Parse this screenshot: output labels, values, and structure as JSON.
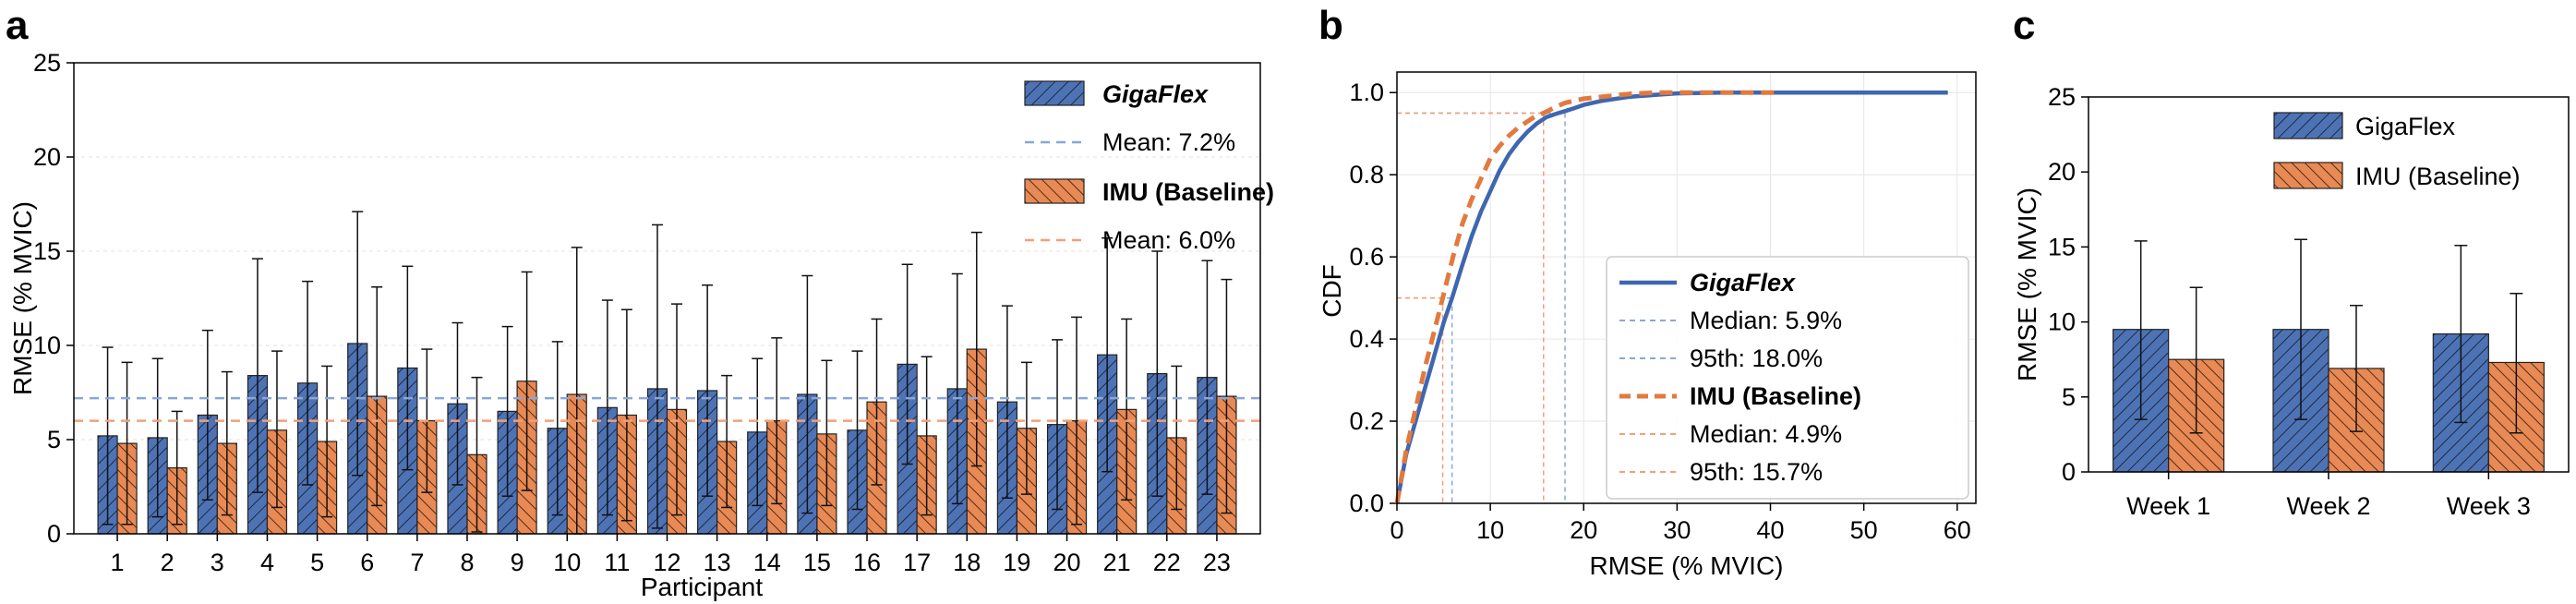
{
  "panels": {
    "a": "a",
    "b": "b",
    "c": "c"
  },
  "colors": {
    "gigaflex": "#4e73b5",
    "imu": "#e78a55",
    "gigaflex_line": "#3f66b0",
    "imu_line": "#e27a3f",
    "gigaflex_mean": "#8ba6d6",
    "imu_mean": "#f0a07a"
  },
  "chart_data": [
    {
      "type": "bar",
      "panel": "a",
      "xlabel": "Participant",
      "ylabel": "RMSE (% MVIC)",
      "ylim": [
        0,
        25
      ],
      "yticks": [
        "0",
        "5",
        "10",
        "15",
        "20",
        "25"
      ],
      "categories": [
        "1",
        "2",
        "3",
        "4",
        "5",
        "6",
        "7",
        "8",
        "9",
        "10",
        "11",
        "12",
        "13",
        "14",
        "15",
        "16",
        "17",
        "18",
        "19",
        "20",
        "21",
        "22",
        "23"
      ],
      "series": [
        {
          "name": "GigaFlex",
          "values": [
            5.2,
            5.1,
            6.3,
            8.4,
            8.0,
            10.1,
            8.8,
            6.9,
            6.5,
            5.6,
            6.7,
            7.7,
            7.6,
            5.4,
            7.4,
            5.5,
            9.0,
            7.7,
            7.0,
            5.8,
            9.5,
            8.5,
            8.3
          ],
          "err_upper": [
            9.9,
            9.3,
            10.8,
            14.6,
            13.4,
            17.1,
            14.2,
            11.2,
            11.0,
            10.2,
            12.4,
            16.4,
            13.2,
            9.3,
            13.7,
            9.7,
            14.3,
            13.8,
            12.1,
            10.3,
            15.7,
            15.0,
            14.5
          ],
          "err_lower": [
            0.5,
            0.9,
            1.8,
            2.2,
            2.6,
            3.1,
            3.4,
            2.6,
            2.0,
            1.0,
            1.0,
            0.3,
            2.0,
            1.5,
            1.1,
            1.3,
            3.7,
            1.6,
            1.9,
            1.3,
            3.3,
            2.0,
            2.1
          ]
        },
        {
          "name": "IMU (Baseline)",
          "values": [
            4.8,
            3.5,
            4.8,
            5.5,
            4.9,
            7.3,
            6.0,
            4.2,
            8.1,
            7.4,
            6.3,
            6.6,
            4.9,
            6.0,
            5.3,
            7.0,
            5.2,
            9.8,
            5.6,
            6.0,
            6.6,
            5.1,
            7.3
          ],
          "err_upper": [
            9.1,
            6.5,
            8.6,
            9.7,
            8.9,
            13.1,
            9.8,
            8.3,
            13.9,
            15.2,
            11.9,
            12.2,
            8.4,
            10.4,
            9.2,
            11.4,
            9.4,
            16.0,
            9.1,
            11.5,
            11.4,
            8.9,
            13.5
          ],
          "err_lower": [
            0.5,
            0.5,
            1.0,
            1.4,
            0.9,
            1.5,
            2.2,
            0.1,
            2.3,
            0.0,
            0.7,
            1.0,
            1.4,
            1.6,
            1.5,
            2.6,
            1.0,
            3.6,
            2.1,
            0.5,
            1.8,
            1.3,
            1.1
          ]
        }
      ],
      "means": [
        {
          "name": "Mean: 7.2%",
          "value": 7.2
        },
        {
          "name": "Mean: 6.0%",
          "value": 6.0
        }
      ],
      "legend": [
        "GigaFlex",
        "Mean: 7.2%",
        "IMU (Baseline)",
        "Mean: 6.0%"
      ],
      "legend_position": "top-right"
    },
    {
      "type": "line",
      "panel": "b",
      "xlabel": "RMSE (% MVIC)",
      "ylabel": "CDF",
      "xlim": [
        0,
        62
      ],
      "ylim": [
        0,
        1.05
      ],
      "xticks": [
        "0",
        "10",
        "20",
        "30",
        "40",
        "50",
        "60"
      ],
      "yticks": [
        "0.0",
        "0.2",
        "0.4",
        "0.6",
        "0.8",
        "1.0"
      ],
      "series": [
        {
          "name": "GigaFlex",
          "x": [
            0,
            1,
            2,
            3,
            4,
            5,
            5.9,
            7,
            8,
            9,
            10,
            11,
            12,
            13,
            14,
            15,
            16,
            17,
            18,
            19,
            20,
            22,
            25,
            28,
            30,
            35,
            40,
            50,
            59
          ],
          "y": [
            0,
            0.12,
            0.2,
            0.28,
            0.36,
            0.44,
            0.5,
            0.58,
            0.65,
            0.71,
            0.76,
            0.81,
            0.85,
            0.88,
            0.905,
            0.925,
            0.94,
            0.948,
            0.955,
            0.962,
            0.97,
            0.98,
            0.99,
            0.995,
            0.998,
            1,
            1,
            1,
            1
          ]
        },
        {
          "name": "IMU (Baseline)",
          "x": [
            0,
            1,
            2,
            3,
            4,
            4.9,
            6,
            7,
            8,
            9,
            10,
            11,
            12,
            13,
            14,
            15,
            15.7,
            17,
            18,
            20,
            22,
            25,
            28,
            30,
            35,
            41
          ],
          "y": [
            0,
            0.13,
            0.23,
            0.33,
            0.42,
            0.5,
            0.6,
            0.68,
            0.74,
            0.79,
            0.84,
            0.87,
            0.895,
            0.915,
            0.93,
            0.945,
            0.95,
            0.965,
            0.975,
            0.985,
            0.99,
            0.997,
            1,
            1,
            1,
            1
          ]
        }
      ],
      "markers": [
        {
          "series": "GigaFlex",
          "label": "Median: 5.9%",
          "x": 5.9,
          "y": 0.5
        },
        {
          "series": "GigaFlex",
          "label": "95th: 18.0%",
          "x": 18.0,
          "y": 0.95
        },
        {
          "series": "IMU (Baseline)",
          "label": "Median: 4.9%",
          "x": 4.9,
          "y": 0.5
        },
        {
          "series": "IMU (Baseline)",
          "label": "95th: 15.7%",
          "x": 15.7,
          "y": 0.95
        }
      ],
      "legend": [
        "GigaFlex",
        "Median: 5.9%",
        "95th: 18.0%",
        "IMU (Baseline)",
        "Median: 4.9%",
        "95th: 15.7%"
      ],
      "legend_position": "lower-right"
    },
    {
      "type": "bar",
      "panel": "c",
      "ylabel": "RMSE (% MVIC)",
      "ylim": [
        0,
        25
      ],
      "yticks": [
        "0",
        "5",
        "10",
        "15",
        "20",
        "25"
      ],
      "categories": [
        "Week 1",
        "Week 2",
        "Week 3"
      ],
      "series": [
        {
          "name": "GigaFlex",
          "values": [
            9.5,
            9.5,
            9.2
          ],
          "err_upper": [
            15.4,
            15.5,
            15.1
          ],
          "err_lower": [
            3.5,
            3.5,
            3.3
          ]
        },
        {
          "name": "IMU (Baseline)",
          "values": [
            7.5,
            6.9,
            7.3
          ],
          "err_upper": [
            12.3,
            11.1,
            11.9
          ],
          "err_lower": [
            2.6,
            2.7,
            2.6
          ]
        }
      ],
      "legend": [
        "GigaFlex",
        "IMU (Baseline)"
      ],
      "legend_position": "top-right"
    }
  ]
}
